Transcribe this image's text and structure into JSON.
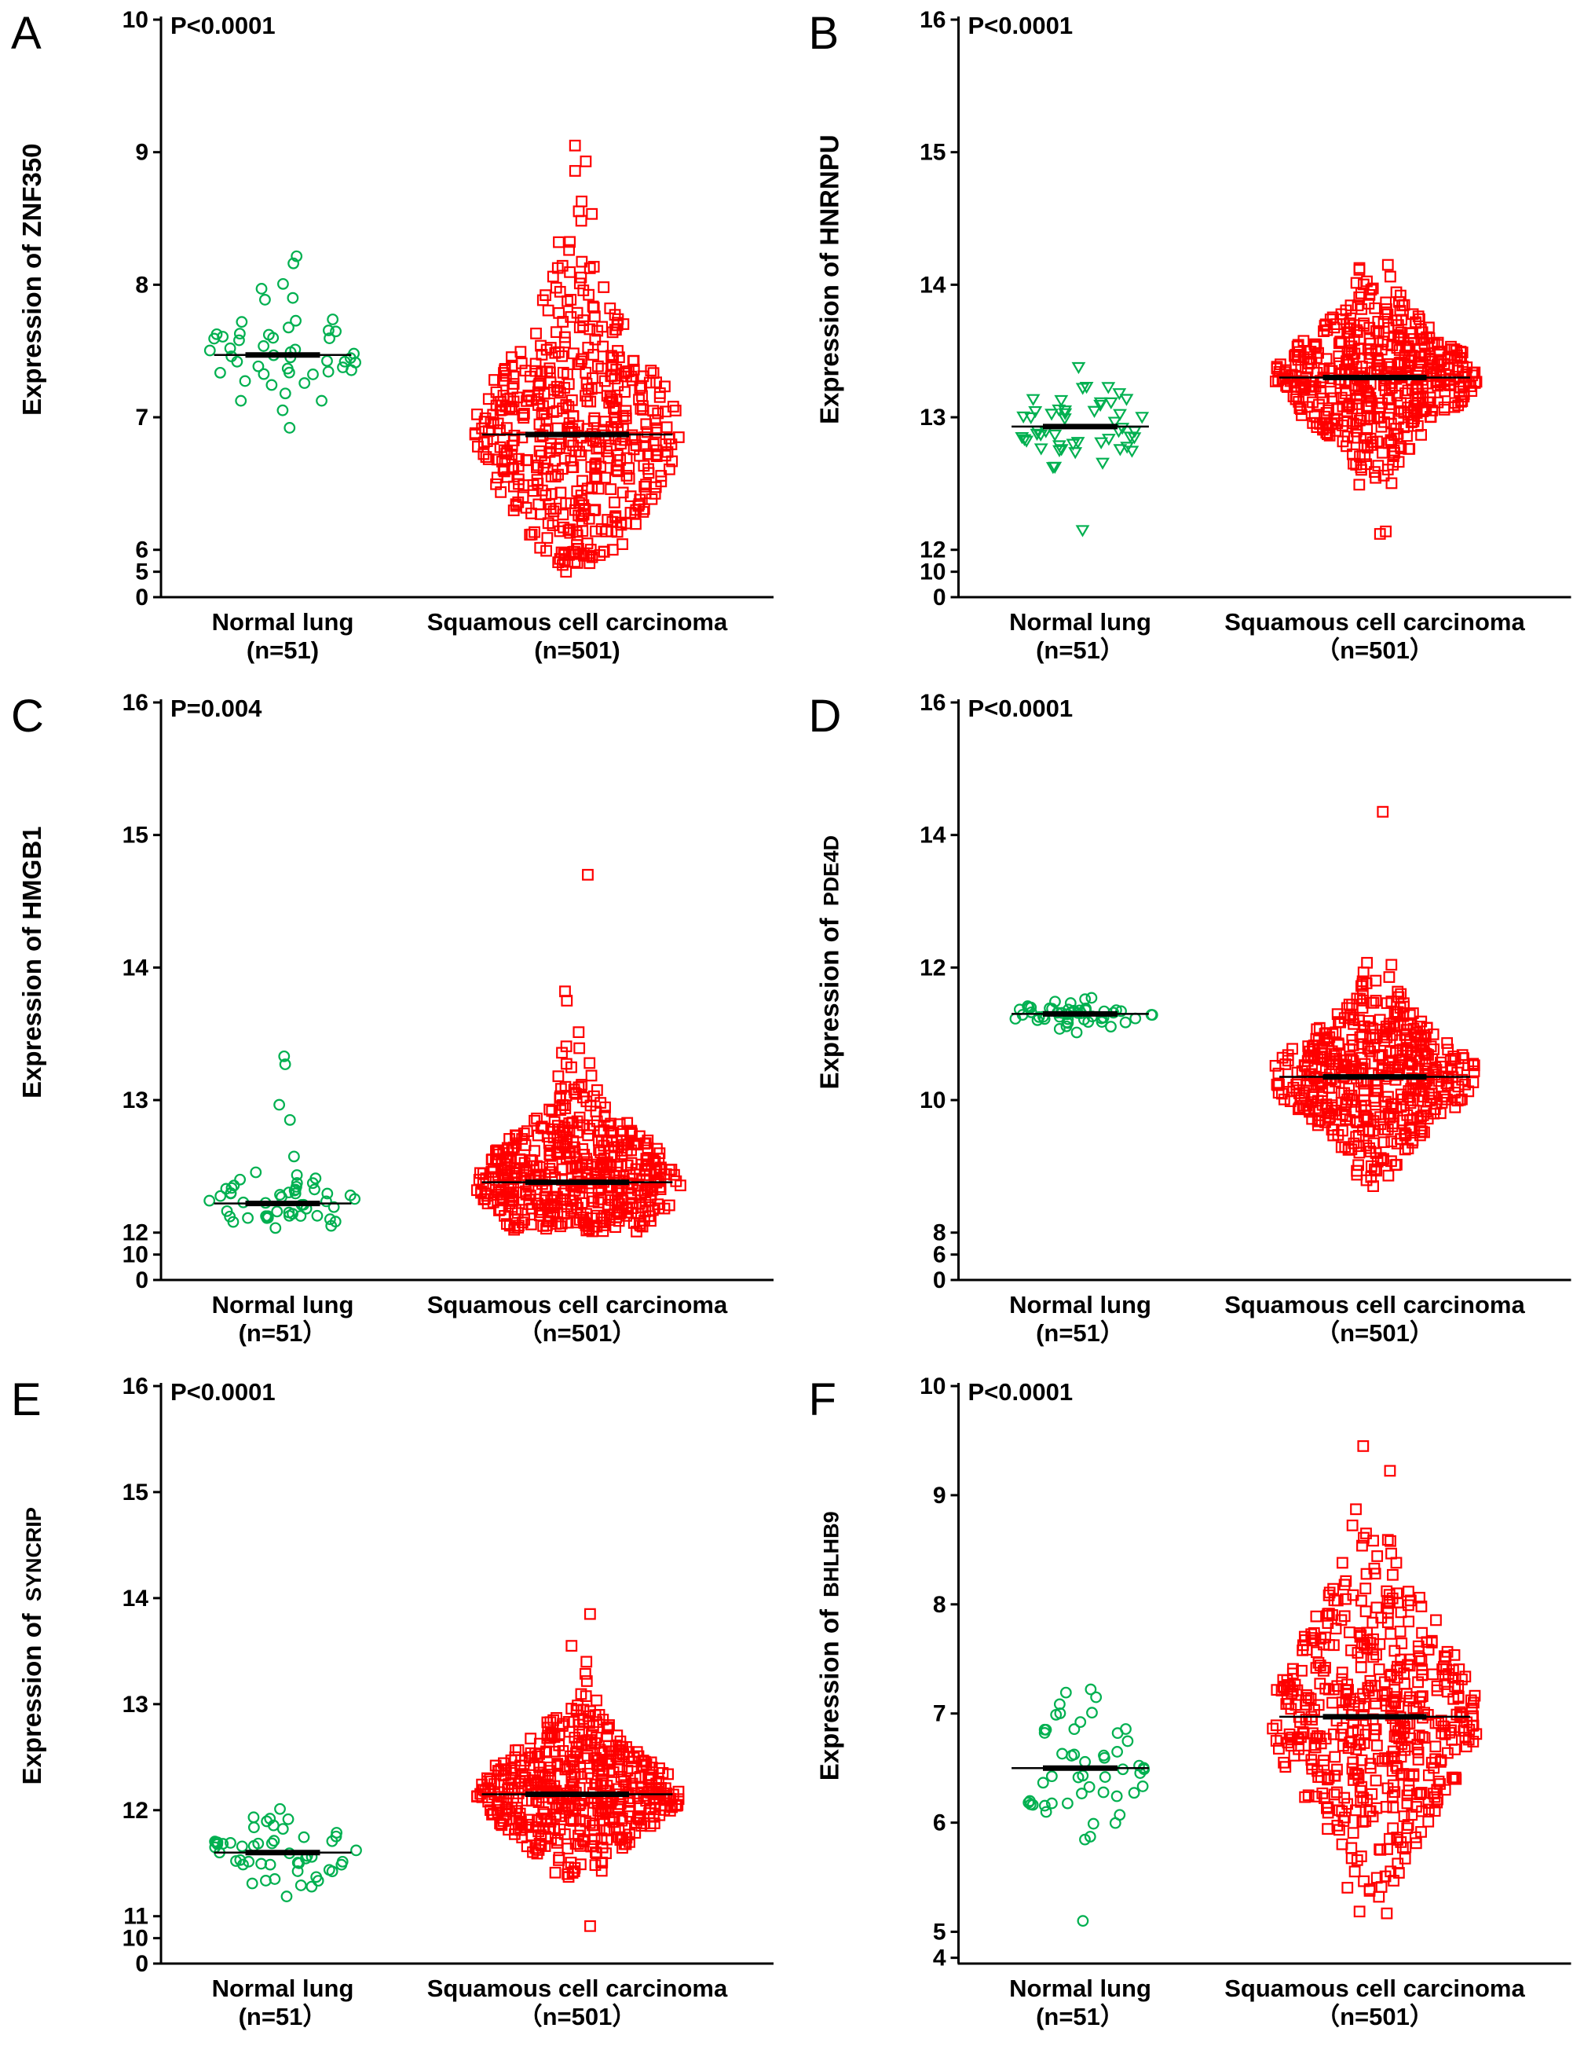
{
  "figure": {
    "background": "#ffffff",
    "axis_color": "#000000",
    "mean_line_color": "#000000",
    "normal_color": "#00B050",
    "tumor_color": "#FF0000"
  },
  "chart_data": [
    {
      "panel": "A",
      "type": "scatter",
      "p_value": "P<0.0001",
      "ylabel_prefix": "Expression of",
      "gene": "ZNF350",
      "gene_size_small": false,
      "axis": {
        "ticks": [
          10,
          9,
          8,
          7,
          6,
          5,
          0
        ],
        "anchors": [
          {
            "v": 10,
            "f": 0.0
          },
          {
            "v": 6,
            "f": 0.918
          },
          {
            "v": 5,
            "f": 0.956
          },
          {
            "v": 0,
            "f": 1.0
          }
        ]
      },
      "groups": [
        {
          "label_line1": "Normal lung",
          "label_line2": "(n=51)",
          "n": 51,
          "marker": "circle",
          "color": "#00B050",
          "mean": 7.47,
          "sd": 0.27,
          "min": 6.83,
          "max": 8.35,
          "tail_frac": 0,
          "tail_mult": 1,
          "outliers": []
        },
        {
          "label_line1": "Squamous cell carcinoma",
          "label_line2": "(n=501)",
          "n": 501,
          "marker": "square",
          "color": "#FF0000",
          "mean": 6.87,
          "sd": 0.52,
          "min": 4.98,
          "max": 9.1,
          "tail_frac": 0.15,
          "tail_mult": 1.8,
          "outliers": [
            9.05
          ]
        }
      ]
    },
    {
      "panel": "B",
      "type": "scatter",
      "p_value": "P<0.0001",
      "ylabel_prefix": "Expression of",
      "gene": "HNRNPU",
      "gene_size_small": false,
      "axis": {
        "ticks": [
          16,
          15,
          14,
          13,
          12,
          10,
          0
        ],
        "anchors": [
          {
            "v": 16,
            "f": 0.0
          },
          {
            "v": 12,
            "f": 0.918
          },
          {
            "v": 10,
            "f": 0.956
          },
          {
            "v": 0,
            "f": 1.0
          }
        ]
      },
      "groups": [
        {
          "label_line1": "Normal lung",
          "label_line2": "(n=51）",
          "n": 51,
          "marker": "triangle-down",
          "color": "#00B050",
          "mean": 12.93,
          "sd": 0.18,
          "min": 12.38,
          "max": 13.42,
          "tail_frac": 0.06,
          "tail_mult": 1.8,
          "outliers": [
            12.15
          ]
        },
        {
          "label_line1": "Squamous cell carcinoma",
          "label_line2": "（n=501）",
          "n": 501,
          "marker": "square",
          "color": "#FF0000",
          "mean": 13.3,
          "sd": 0.28,
          "min": 12.08,
          "max": 14.15,
          "tail_frac": 0.15,
          "tail_mult": 1.8,
          "outliers": [
            12.12
          ]
        }
      ]
    },
    {
      "panel": "C",
      "type": "scatter",
      "p_value": "P=0.004",
      "ylabel_prefix": "Expression of",
      "gene": "HMGB1",
      "gene_size_small": false,
      "axis": {
        "ticks": [
          16,
          15,
          14,
          13,
          12,
          10,
          0
        ],
        "anchors": [
          {
            "v": 16,
            "f": 0.0
          },
          {
            "v": 12,
            "f": 0.918
          },
          {
            "v": 10,
            "f": 0.956
          },
          {
            "v": 0,
            "f": 1.0
          }
        ]
      },
      "groups": [
        {
          "label_line1": "Normal lung",
          "label_line2": "(n=51）",
          "n": 51,
          "marker": "circle",
          "color": "#00B050",
          "mean": 12.22,
          "sd": 0.15,
          "min": 12.02,
          "max": 13.35,
          "tail_frac": 0.1,
          "tail_mult": 2.5,
          "outliers": [
            12.85,
            13.27,
            13.33
          ]
        },
        {
          "label_line1": "Squamous cell carcinoma",
          "label_line2": "（n=501）",
          "n": 501,
          "marker": "square",
          "color": "#FF0000",
          "mean": 12.38,
          "sd": 0.3,
          "min": 12.0,
          "max": 13.6,
          "tail_frac": 0.15,
          "tail_mult": 1.8,
          "outliers": [
            13.75,
            13.82,
            14.7
          ]
        }
      ]
    },
    {
      "panel": "D",
      "type": "scatter",
      "p_value": "P<0.0001",
      "ylabel_prefix": "Expression of",
      "gene": "PDE4D",
      "gene_size_small": true,
      "axis": {
        "ticks": [
          16,
          14,
          12,
          10,
          8,
          6,
          0
        ],
        "anchors": [
          {
            "v": 16,
            "f": 0.0
          },
          {
            "v": 8,
            "f": 0.918
          },
          {
            "v": 6,
            "f": 0.956
          },
          {
            "v": 0,
            "f": 1.0
          }
        ]
      },
      "groups": [
        {
          "label_line1": "Normal lung",
          "label_line2": "(n=51）",
          "n": 51,
          "marker": "circle",
          "color": "#00B050",
          "mean": 11.3,
          "sd": 0.12,
          "min": 11.02,
          "max": 11.68,
          "tail_frac": 0,
          "tail_mult": 1,
          "outliers": []
        },
        {
          "label_line1": "Squamous cell carcinoma",
          "label_line2": "（n=501）",
          "n": 501,
          "marker": "square",
          "color": "#FF0000",
          "mean": 10.35,
          "sd": 0.55,
          "min": 8.3,
          "max": 12.7,
          "tail_frac": 0.15,
          "tail_mult": 1.6,
          "outliers": [
            14.35
          ]
        }
      ]
    },
    {
      "panel": "E",
      "type": "scatter",
      "p_value": "P<0.0001",
      "ylabel_prefix": "Expression of",
      "gene": "SYNCRIP",
      "gene_size_small": true,
      "axis": {
        "ticks": [
          16,
          15,
          14,
          13,
          12,
          11,
          10,
          0
        ],
        "anchors": [
          {
            "v": 16,
            "f": 0.0
          },
          {
            "v": 11,
            "f": 0.918
          },
          {
            "v": 10,
            "f": 0.956
          },
          {
            "v": 0,
            "f": 1.0
          }
        ]
      },
      "groups": [
        {
          "label_line1": "Normal lung",
          "label_line2": "(n=51）",
          "n": 51,
          "marker": "circle",
          "color": "#00B050",
          "mean": 11.6,
          "sd": 0.2,
          "min": 11.05,
          "max": 12.1,
          "tail_frac": 0,
          "tail_mult": 1,
          "outliers": []
        },
        {
          "label_line1": "Squamous cell carcinoma",
          "label_line2": "（n=501）",
          "n": 501,
          "marker": "square",
          "color": "#FF0000",
          "mean": 12.15,
          "sd": 0.33,
          "min": 11.3,
          "max": 13.3,
          "tail_frac": 0.12,
          "tail_mult": 1.7,
          "outliers": [
            13.4,
            13.55,
            13.85,
            10.55
          ]
        }
      ]
    },
    {
      "panel": "F",
      "type": "scatter",
      "p_value": "P<0.0001",
      "ylabel_prefix": "Expression of",
      "gene": "BHLHB9",
      "gene_size_small": true,
      "axis": {
        "ticks": [
          10,
          9,
          8,
          7,
          6,
          5,
          4
        ],
        "anchors": [
          {
            "v": 10,
            "f": 0.0
          },
          {
            "v": 5,
            "f": 0.945
          },
          {
            "v": 4,
            "f": 0.99
          }
        ]
      },
      "groups": [
        {
          "label_line1": "Normal lung",
          "label_line2": "(n=51）",
          "n": 51,
          "marker": "circle",
          "color": "#00B050",
          "mean": 6.5,
          "sd": 0.33,
          "min": 5.4,
          "max": 7.25,
          "tail_frac": 0.1,
          "tail_mult": 1.8,
          "outliers": [
            5.1
          ]
        },
        {
          "label_line1": "Squamous cell carcinoma",
          "label_line2": "（n=501）",
          "n": 501,
          "marker": "square",
          "color": "#FF0000",
          "mean": 6.97,
          "sd": 0.7,
          "min": 5.0,
          "max": 9.45,
          "tail_frac": 0.12,
          "tail_mult": 1.6,
          "outliers": [
            9.45
          ]
        }
      ]
    }
  ]
}
